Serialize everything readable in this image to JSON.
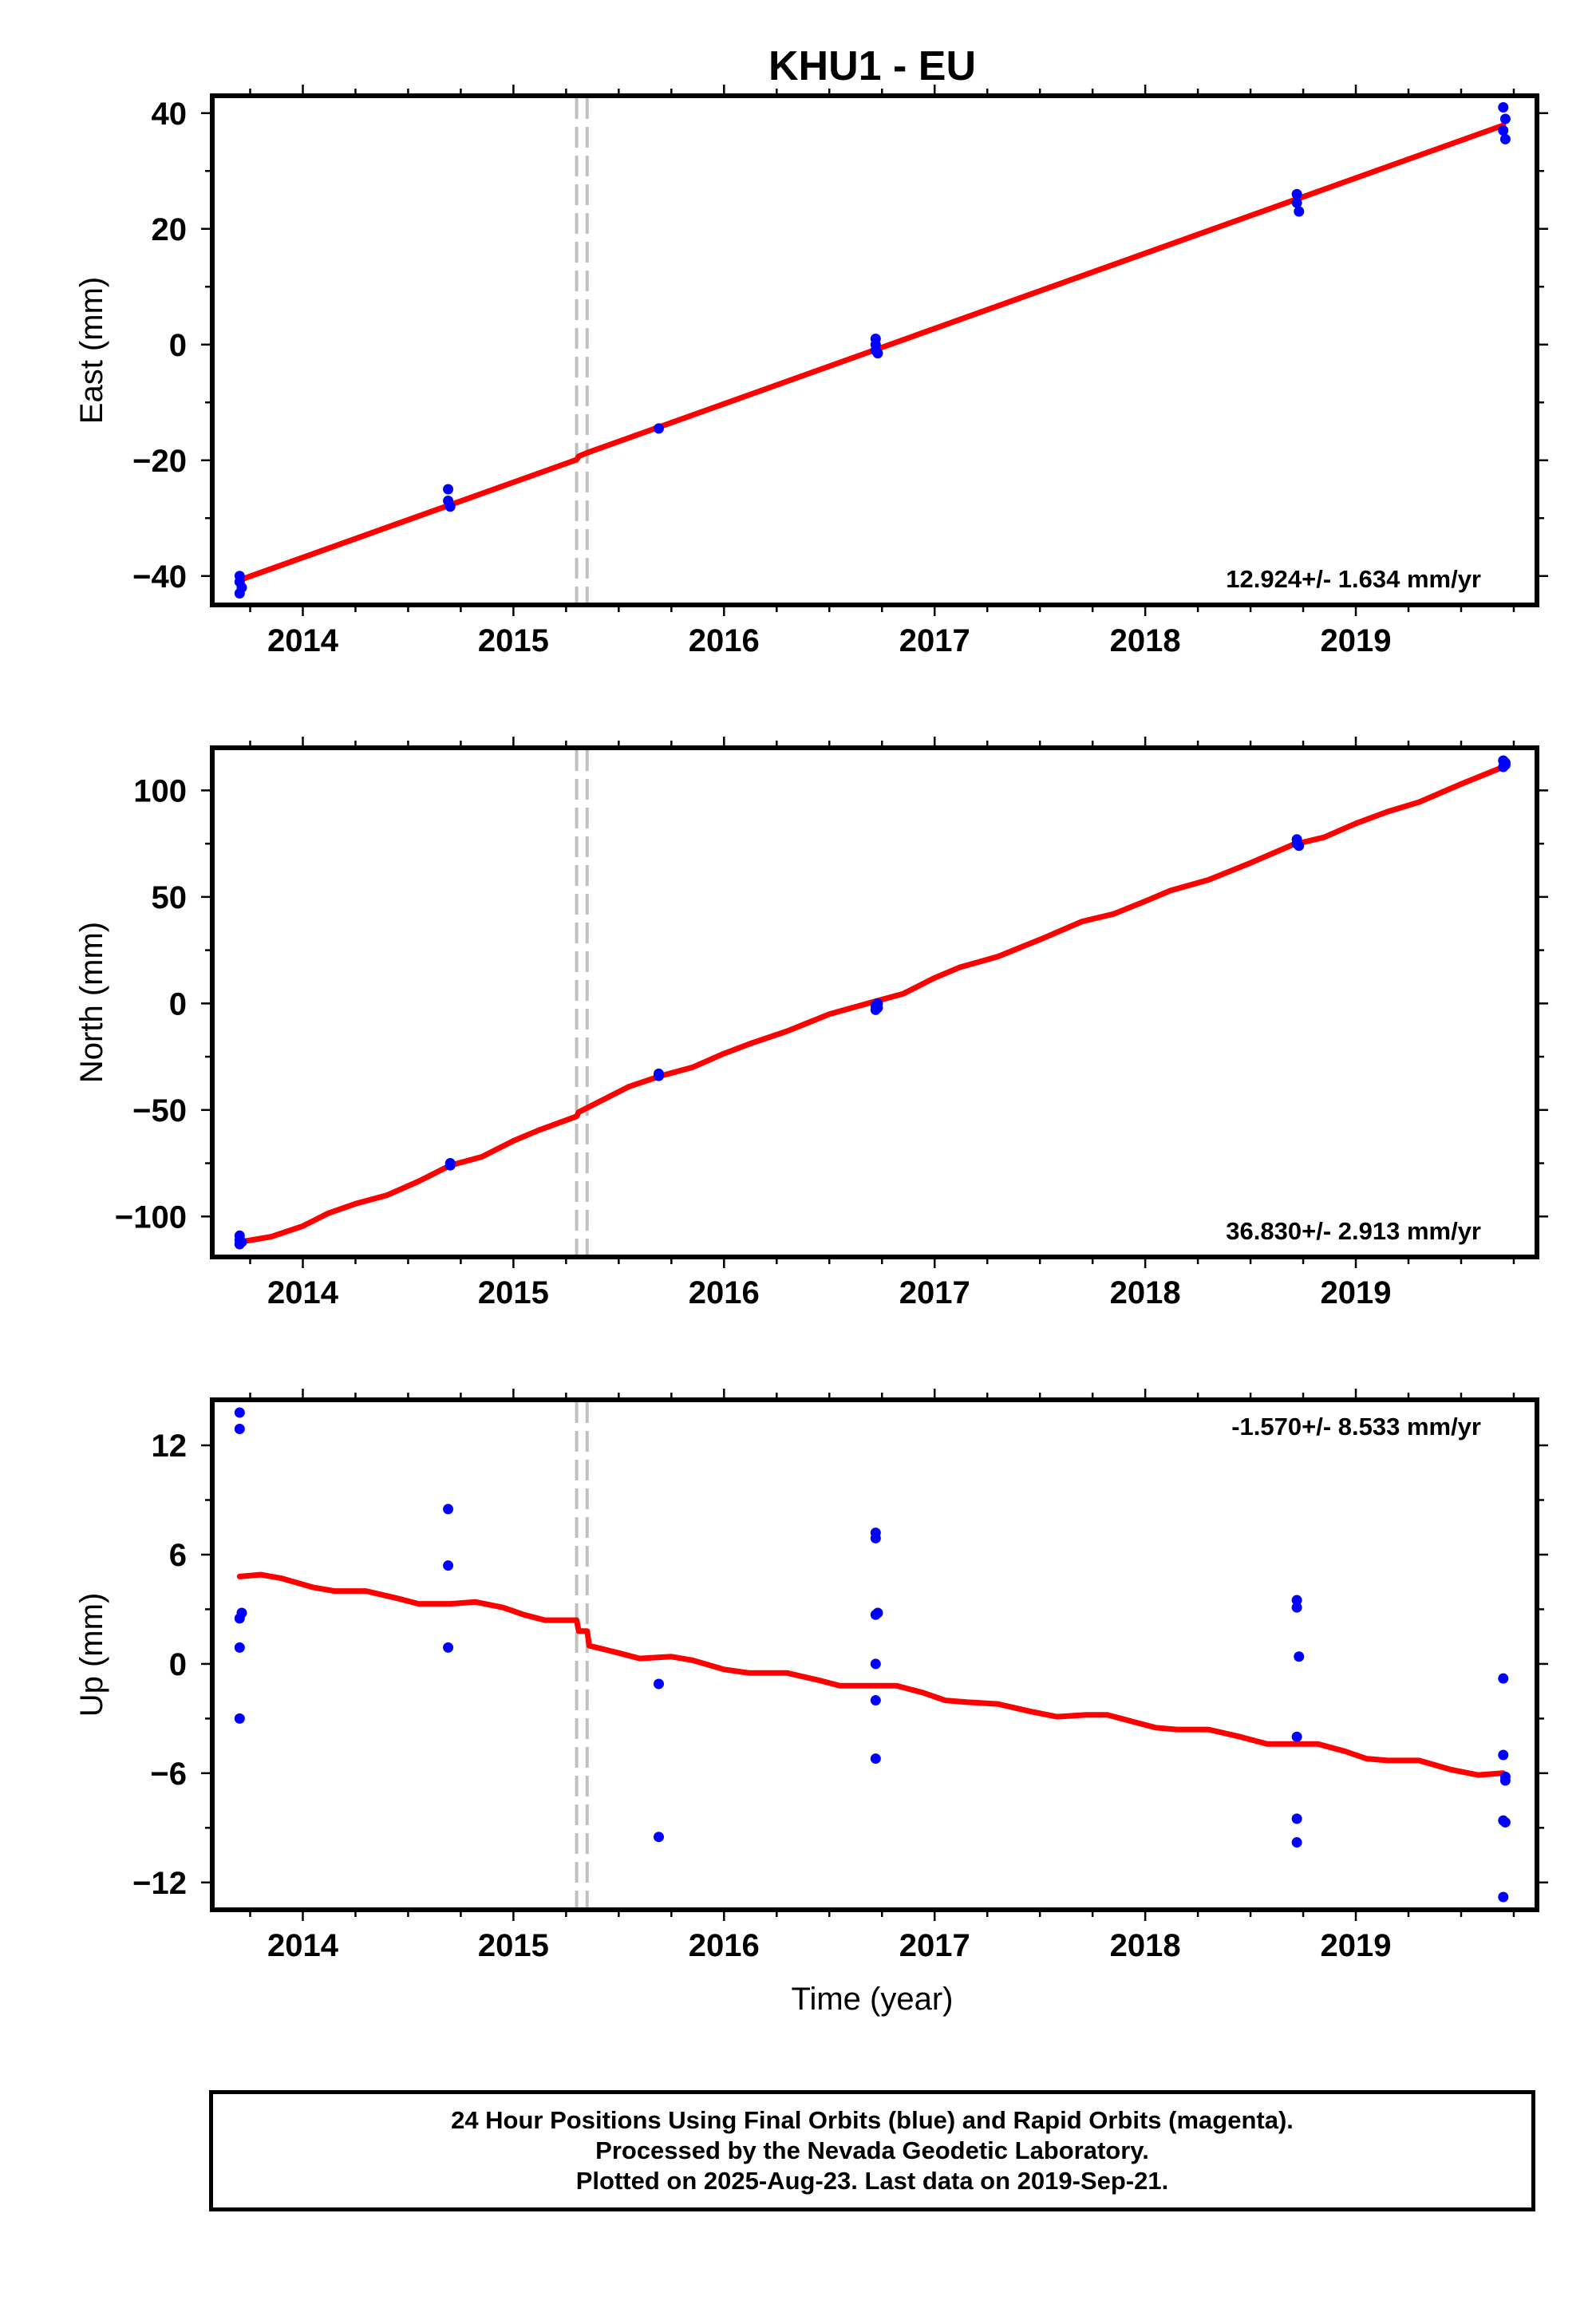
{
  "title": "KHU1 - EU",
  "xlabel": "Time (year)",
  "caption": [
    "24 Hour Positions Using Final Orbits (blue) and Rapid Orbits (magenta).",
    "Processed by the Nevada Geodetic Laboratory.",
    "Plotted on 2025-Aug-23. Last data on 2019-Sep-21."
  ],
  "colors": {
    "data": "#0000ff",
    "model": "#ff0000",
    "offset": "#c0c0c0",
    "frame": "#000000"
  },
  "chart_data": [
    {
      "type": "scatter",
      "ylabel": "East (mm)",
      "rate": "12.924+/- 1.634 mm/yr",
      "rate_position": "bottom-right",
      "xlim": [
        2013.57,
        2019.86
      ],
      "ylim": [
        -45,
        43
      ],
      "xticks": [
        2014,
        2015,
        2016,
        2017,
        2018,
        2019
      ],
      "yticks": [
        -40,
        -20,
        0,
        20,
        40
      ],
      "offsets": [
        2015.3,
        2015.35
      ],
      "points": [
        [
          2013.7,
          -40
        ],
        [
          2013.7,
          -41
        ],
        [
          2013.71,
          -42
        ],
        [
          2013.7,
          -43
        ],
        [
          2014.69,
          -25
        ],
        [
          2014.69,
          -27
        ],
        [
          2014.7,
          -28
        ],
        [
          2015.69,
          -14.5
        ],
        [
          2016.72,
          1
        ],
        [
          2016.72,
          0
        ],
        [
          2016.72,
          -1
        ],
        [
          2016.73,
          -1.5
        ],
        [
          2018.72,
          26
        ],
        [
          2018.72,
          24.5
        ],
        [
          2018.73,
          23
        ],
        [
          2019.7,
          41
        ],
        [
          2019.71,
          39
        ],
        [
          2019.7,
          37
        ],
        [
          2019.71,
          35.5
        ]
      ],
      "model": [
        [
          2013.7,
          -40.7
        ],
        [
          2015.3,
          -19.9
        ],
        [
          2015.31,
          -19.3
        ],
        [
          2015.35,
          -18.7
        ],
        [
          2019.7,
          37.9
        ]
      ]
    },
    {
      "type": "scatter",
      "ylabel": "North (mm)",
      "rate": "36.830+/- 2.913 mm/yr",
      "rate_position": "bottom-right",
      "xlim": [
        2013.57,
        2019.86
      ],
      "ylim": [
        -119,
        120
      ],
      "xticks": [
        2014,
        2015,
        2016,
        2017,
        2018,
        2019
      ],
      "yticks": [
        -100,
        -50,
        0,
        50,
        100
      ],
      "offsets": [
        2015.3,
        2015.35
      ],
      "points": [
        [
          2013.7,
          -109
        ],
        [
          2013.7,
          -111
        ],
        [
          2013.71,
          -112
        ],
        [
          2013.7,
          -113
        ],
        [
          2014.7,
          -75
        ],
        [
          2014.7,
          -76
        ],
        [
          2015.69,
          -33
        ],
        [
          2015.69,
          -34
        ],
        [
          2016.72,
          -3
        ],
        [
          2016.72,
          -1
        ],
        [
          2016.73,
          0
        ],
        [
          2016.73,
          -2
        ],
        [
          2018.72,
          77
        ],
        [
          2018.72,
          75
        ],
        [
          2018.73,
          74
        ],
        [
          2019.7,
          114
        ],
        [
          2019.71,
          112
        ],
        [
          2019.7,
          111
        ],
        [
          2019.71,
          113
        ]
      ],
      "model": [
        [
          2013.7,
          -112
        ],
        [
          2013.85,
          -109.5
        ],
        [
          2014.0,
          -104.5
        ],
        [
          2014.12,
          -98.5
        ],
        [
          2014.25,
          -94
        ],
        [
          2014.4,
          -90
        ],
        [
          2014.55,
          -83.5
        ],
        [
          2014.7,
          -76
        ],
        [
          2014.85,
          -72
        ],
        [
          2015.0,
          -64.5
        ],
        [
          2015.12,
          -59.5
        ],
        [
          2015.3,
          -53
        ],
        [
          2015.31,
          -51
        ],
        [
          2015.35,
          -49
        ],
        [
          2015.55,
          -39
        ],
        [
          2015.7,
          -34
        ],
        [
          2015.85,
          -30
        ],
        [
          2016.0,
          -23.5
        ],
        [
          2016.12,
          -19
        ],
        [
          2016.3,
          -13
        ],
        [
          2016.5,
          -5
        ],
        [
          2016.7,
          0.5
        ],
        [
          2016.85,
          4.5
        ],
        [
          2017.0,
          12
        ],
        [
          2017.12,
          17
        ],
        [
          2017.3,
          22
        ],
        [
          2017.5,
          30
        ],
        [
          2017.7,
          38.5
        ],
        [
          2017.85,
          42
        ],
        [
          2018.0,
          48
        ],
        [
          2018.12,
          53
        ],
        [
          2018.3,
          58
        ],
        [
          2018.5,
          66
        ],
        [
          2018.7,
          74.5
        ],
        [
          2018.85,
          78
        ],
        [
          2019.0,
          84.5
        ],
        [
          2019.15,
          90
        ],
        [
          2019.3,
          94.5
        ],
        [
          2019.5,
          103
        ],
        [
          2019.7,
          111
        ]
      ]
    },
    {
      "type": "scatter",
      "ylabel": "Up (mm)",
      "rate": "-1.570+/- 8.533 mm/yr",
      "rate_position": "top-right",
      "xlim": [
        2013.57,
        2019.86
      ],
      "ylim": [
        -13.5,
        14.5
      ],
      "xticks": [
        2014,
        2015,
        2016,
        2017,
        2018,
        2019
      ],
      "yticks": [
        -12,
        -6,
        0,
        6,
        12
      ],
      "offsets": [
        2015.3,
        2015.35
      ],
      "points": [
        [
          2013.7,
          13.8
        ],
        [
          2013.7,
          12.9
        ],
        [
          2013.71,
          2.8
        ],
        [
          2013.7,
          2.5
        ],
        [
          2013.7,
          0.9
        ],
        [
          2013.7,
          -3
        ],
        [
          2014.69,
          8.5
        ],
        [
          2014.69,
          5.4
        ],
        [
          2014.69,
          0.9
        ],
        [
          2015.69,
          -1.1
        ],
        [
          2015.69,
          -9.5
        ],
        [
          2016.72,
          7.2
        ],
        [
          2016.72,
          6.9
        ],
        [
          2016.73,
          2.8
        ],
        [
          2016.72,
          2.7
        ],
        [
          2016.72,
          0
        ],
        [
          2016.72,
          -2
        ],
        [
          2016.72,
          -5.2
        ],
        [
          2018.72,
          3.5
        ],
        [
          2018.72,
          3.1
        ],
        [
          2018.73,
          0.4
        ],
        [
          2018.72,
          -4
        ],
        [
          2018.72,
          -8.5
        ],
        [
          2018.72,
          -9.8
        ],
        [
          2019.7,
          -0.8
        ],
        [
          2019.7,
          -5
        ],
        [
          2019.71,
          -6.2
        ],
        [
          2019.71,
          -6.4
        ],
        [
          2019.7,
          -8.6
        ],
        [
          2019.71,
          -8.7
        ],
        [
          2019.7,
          -12.8
        ]
      ],
      "model": [
        [
          2013.7,
          4.8
        ],
        [
          2013.8,
          4.9
        ],
        [
          2013.9,
          4.7
        ],
        [
          2014.05,
          4.2
        ],
        [
          2014.15,
          4.0
        ],
        [
          2014.3,
          4.0
        ],
        [
          2014.45,
          3.6
        ],
        [
          2014.55,
          3.3
        ],
        [
          2014.7,
          3.3
        ],
        [
          2014.82,
          3.4
        ],
        [
          2014.95,
          3.1
        ],
        [
          2015.05,
          2.7
        ],
        [
          2015.15,
          2.4
        ],
        [
          2015.3,
          2.4
        ],
        [
          2015.31,
          1.8
        ],
        [
          2015.35,
          1.8
        ],
        [
          2015.36,
          1.0
        ],
        [
          2015.5,
          0.6
        ],
        [
          2015.6,
          0.3
        ],
        [
          2015.75,
          0.4
        ],
        [
          2015.85,
          0.2
        ],
        [
          2016.0,
          -0.3
        ],
        [
          2016.12,
          -0.5
        ],
        [
          2016.3,
          -0.5
        ],
        [
          2016.45,
          -0.9
        ],
        [
          2016.55,
          -1.2
        ],
        [
          2016.7,
          -1.2
        ],
        [
          2016.82,
          -1.2
        ],
        [
          2016.95,
          -1.6
        ],
        [
          2017.05,
          -2.0
        ],
        [
          2017.15,
          -2.1
        ],
        [
          2017.3,
          -2.2
        ],
        [
          2017.45,
          -2.6
        ],
        [
          2017.58,
          -2.9
        ],
        [
          2017.72,
          -2.8
        ],
        [
          2017.82,
          -2.8
        ],
        [
          2017.95,
          -3.2
        ],
        [
          2018.05,
          -3.5
        ],
        [
          2018.15,
          -3.6
        ],
        [
          2018.3,
          -3.6
        ],
        [
          2018.45,
          -4.0
        ],
        [
          2018.58,
          -4.4
        ],
        [
          2018.72,
          -4.4
        ],
        [
          2018.82,
          -4.4
        ],
        [
          2018.95,
          -4.8
        ],
        [
          2019.05,
          -5.2
        ],
        [
          2019.15,
          -5.3
        ],
        [
          2019.3,
          -5.3
        ],
        [
          2019.45,
          -5.8
        ],
        [
          2019.58,
          -6.1
        ],
        [
          2019.7,
          -6.0
        ]
      ]
    }
  ]
}
